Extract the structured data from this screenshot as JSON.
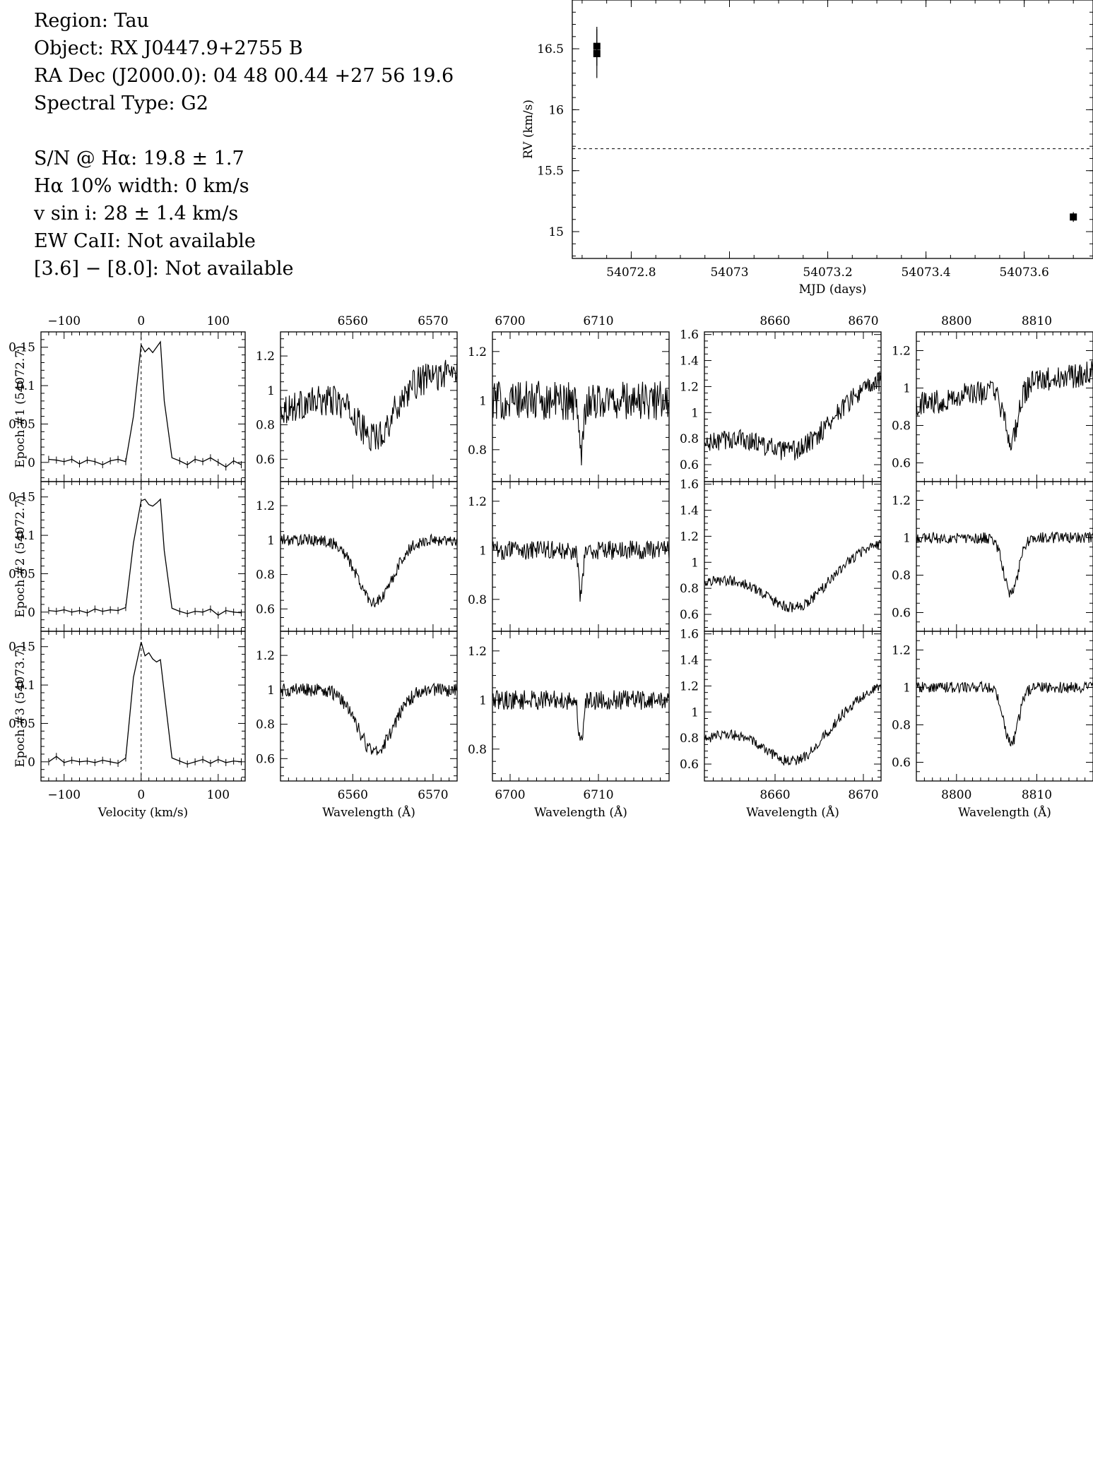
{
  "info": {
    "region": "Region: Tau",
    "object": "Object: RX J0447.9+2755 B",
    "radec": "RA Dec (J2000.0): 04 48 00.44 +27 56 19.6",
    "sptype": "Spectral Type: G2",
    "sn": "S/N @ Hα: 19.8 ± 1.7",
    "ha_width": "Hα 10% width: 0 km/s",
    "vsini": "v sin i: 28 ± 1.4 km/s",
    "ew_caii": "EW CaII: Not available",
    "irac": "[3.6] − [8.0]: Not available"
  },
  "chart_data": [
    {
      "type": "scatter",
      "id": "rv",
      "xlabel": "MJD (days)",
      "ylabel": "RV (km/s)",
      "xlim": [
        54072.68,
        54073.74
      ],
      "ylim": [
        14.78,
        16.9
      ],
      "xticks": [
        54072.8,
        54073,
        54073.2,
        54073.4,
        54073.6
      ],
      "xtick_labels": [
        "54072.8",
        "54073",
        "54073.2",
        "54073.4",
        "54073.6"
      ],
      "yticks": [
        15,
        15.5,
        16,
        16.5
      ],
      "ytick_labels": [
        "15",
        "15.5",
        "16",
        "16.5"
      ],
      "mean_line": 15.68,
      "points": [
        {
          "x": 54072.73,
          "y": 16.52,
          "err": 0.16
        },
        {
          "x": 54072.73,
          "y": 16.46,
          "err": 0.2
        },
        {
          "x": 54073.7,
          "y": 15.12,
          "err": 0.04
        }
      ]
    },
    {
      "type": "line",
      "id": "ha_velocity",
      "xlabel": "Velocity (km/s)",
      "xlim": [
        -130,
        135
      ],
      "ylim": [
        -0.025,
        0.17
      ],
      "xticks": [
        -100,
        0,
        100
      ],
      "xtick_labels": [
        "−100",
        "0",
        "100"
      ],
      "yticks": [
        0,
        0.05,
        0.1,
        0.15
      ],
      "ytick_labels": [
        "0",
        "0.05",
        "0.1",
        "0.15"
      ],
      "x": [
        -120,
        -110,
        -100,
        -90,
        -80,
        -70,
        -60,
        -50,
        -40,
        -30,
        -20,
        -10,
        0,
        5,
        10,
        15,
        20,
        25,
        30,
        40,
        50,
        60,
        70,
        80,
        90,
        100,
        110,
        120,
        130
      ],
      "series": [
        {
          "epoch": "Epoch #1 (54072.7)",
          "values": [
            0.004,
            0.003,
            0.001,
            0.004,
            -0.002,
            0.003,
            0.001,
            -0.003,
            0.002,
            0.004,
            0.001,
            0.06,
            0.153,
            0.144,
            0.149,
            0.143,
            0.15,
            0.157,
            0.08,
            0.006,
            0.002,
            -0.003,
            0.004,
            0.001,
            0.006,
            0.0,
            -0.006,
            0.002,
            -0.003
          ]
        },
        {
          "epoch": "Epoch #2 (54072.7)",
          "values": [
            0.002,
            0.001,
            0.003,
            0.0,
            0.002,
            -0.001,
            0.004,
            0.001,
            0.003,
            0.002,
            0.006,
            0.09,
            0.145,
            0.147,
            0.14,
            0.138,
            0.142,
            0.147,
            0.08,
            0.005,
            0.001,
            -0.002,
            0.001,
            0.0,
            0.004,
            -0.004,
            0.002,
            0.0,
            -0.001
          ]
        },
        {
          "epoch": "Epoch #3 (54073.7)",
          "values": [
            0.0,
            0.007,
            -0.001,
            0.002,
            0.0,
            0.001,
            -0.001,
            0.002,
            0.0,
            -0.002,
            0.005,
            0.11,
            0.156,
            0.138,
            0.142,
            0.134,
            0.13,
            0.133,
            0.09,
            0.005,
            0.001,
            -0.003,
            0.0,
            0.003,
            -0.002,
            0.003,
            -0.001,
            0.001,
            0.0
          ]
        }
      ]
    },
    {
      "type": "line",
      "id": "ha",
      "xlabel": "Wavelength (Å)",
      "xlim": [
        6551,
        6573
      ],
      "xticks": [
        6560,
        6570
      ],
      "xtick_labels": [
        "6560",
        "6570"
      ],
      "ylim": [
        0.47,
        1.34
      ],
      "yticks": [
        0.6,
        0.8,
        1,
        1.2
      ],
      "ytick_labels": [
        "0.6",
        "0.8",
        "1",
        "1.2"
      ],
      "profile": {
        "type": "gaussian",
        "center": 6562.8,
        "width": 2.2,
        "depth": [
          0.28,
          0.36,
          0.36
        ]
      },
      "slope": [
        0.01,
        0.0,
        0.0
      ],
      "noise": [
        0.09,
        0.035,
        0.04
      ]
    },
    {
      "type": "line",
      "id": "li",
      "xlabel": "Wavelength (Å)",
      "xlim": [
        6698,
        6718
      ],
      "xticks": [
        6700,
        6710
      ],
      "xtick_labels": [
        "6700",
        "6710"
      ],
      "ylim": [
        0.67,
        1.28
      ],
      "yticks": [
        0.8,
        1,
        1.2
      ],
      "ytick_labels": [
        "0.8",
        "1",
        "1.2"
      ],
      "profile": {
        "type": "gaussian",
        "center": 6708,
        "width": 0.25,
        "depth": [
          0.2,
          0.18,
          0.18
        ]
      },
      "slope": [
        0.0,
        0.0,
        0.0
      ],
      "noise": [
        0.08,
        0.04,
        0.04
      ]
    },
    {
      "type": "line",
      "id": "ca8662",
      "xlabel": "Wavelength (Å)",
      "xlim": [
        8652,
        8672
      ],
      "xticks": [
        8660,
        8670
      ],
      "xtick_labels": [
        "8660",
        "8670"
      ],
      "ylim": [
        0.47,
        1.62
      ],
      "yticks": [
        0.6,
        0.8,
        1,
        1.2,
        1.4,
        1.6
      ],
      "ytick_labels": [
        "0.6",
        "0.8",
        "1",
        "1.2",
        "1.4",
        "1.6"
      ],
      "profile": {
        "type": "gaussian",
        "center": 8662.5,
        "width": 3.5,
        "depth": [
          0.3,
          0.35,
          0.38
        ]
      },
      "slope": [
        0.025,
        0.015,
        0.02
      ],
      "noise": [
        0.08,
        0.04,
        0.04
      ]
    },
    {
      "type": "line",
      "id": "ca8807",
      "xlabel": "Wavelength (Å)",
      "xlim": [
        8795,
        8817
      ],
      "xticks": [
        8800,
        8810
      ],
      "xtick_labels": [
        "8800",
        "8810"
      ],
      "ylim": [
        0.5,
        1.3
      ],
      "yticks": [
        0.6,
        0.8,
        1,
        1.2
      ],
      "ytick_labels": [
        "0.6",
        "0.8",
        "1",
        "1.2"
      ],
      "profile": {
        "type": "gaussian",
        "center": 8806.8,
        "width": 0.9,
        "depth": [
          0.28,
          0.3,
          0.3
        ]
      },
      "slope": [
        0.008,
        0.0,
        0.0
      ],
      "noise": [
        0.07,
        0.03,
        0.03
      ]
    }
  ]
}
